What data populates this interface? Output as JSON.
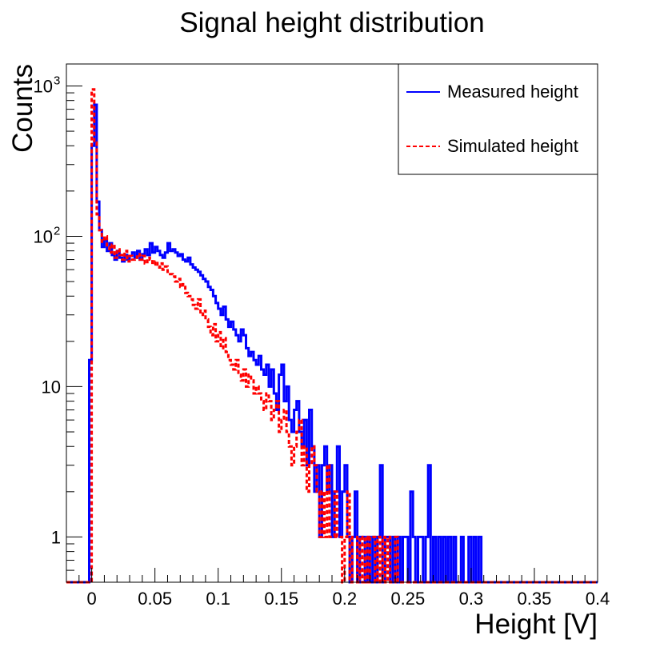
{
  "chart_data": {
    "type": "histogram",
    "title": "Signal height distribution",
    "xlabel": "Height [V]",
    "ylabel": "Counts",
    "xlim": [
      -0.02,
      0.4
    ],
    "ylim": [
      0.5,
      1400
    ],
    "yscale": "log",
    "bin_width": 0.002,
    "x_ticks": [
      {
        "value": 0,
        "label": "0"
      },
      {
        "value": 0.05,
        "label": "0.05"
      },
      {
        "value": 0.1,
        "label": "0.1"
      },
      {
        "value": 0.15,
        "label": "0.15"
      },
      {
        "value": 0.2,
        "label": "0.2"
      },
      {
        "value": 0.25,
        "label": "0.25"
      },
      {
        "value": 0.3,
        "label": "0.3"
      },
      {
        "value": 0.35,
        "label": "0.35"
      },
      {
        "value": 0.4,
        "label": "0.4"
      }
    ],
    "y_ticks": [
      {
        "value": 1,
        "label": "1"
      },
      {
        "value": 10,
        "label": "10"
      },
      {
        "value": 100,
        "label": "10",
        "exp": "2"
      },
      {
        "value": 1000,
        "label": "10",
        "exp": "3"
      }
    ],
    "legend_position": "top-right",
    "series": [
      {
        "name": "Measured height",
        "color": "#0000ff",
        "style": "solid",
        "bin_start": -0.004,
        "values": [
          0,
          15,
          400,
          750,
          170,
          110,
          85,
          95,
          80,
          90,
          75,
          70,
          80,
          72,
          68,
          75,
          70,
          74,
          78,
          72,
          80,
          70,
          76,
          82,
          75,
          90,
          78,
          85,
          80,
          75,
          72,
          78,
          90,
          80,
          82,
          78,
          74,
          76,
          70,
          68,
          72,
          65,
          62,
          60,
          58,
          55,
          52,
          50,
          46,
          44,
          40,
          36,
          33,
          30,
          34,
          28,
          25,
          27,
          24,
          22,
          20,
          24,
          22,
          18,
          16,
          17,
          15,
          14,
          16,
          13,
          12,
          14,
          10,
          13,
          9,
          7,
          12,
          14,
          8,
          10,
          6,
          5,
          7,
          8,
          5,
          4,
          6,
          3,
          7,
          4,
          2,
          3,
          1,
          3,
          4,
          2,
          3,
          1,
          2,
          4,
          1,
          2,
          3,
          1,
          0,
          1,
          2,
          0,
          1,
          1,
          0,
          1,
          0,
          1,
          0,
          1,
          3,
          0,
          1,
          1,
          0,
          1,
          0,
          1,
          0,
          1,
          1,
          0,
          2,
          1,
          0,
          1,
          1,
          0,
          1,
          3,
          0,
          1,
          0,
          1,
          0,
          1,
          0,
          1,
          0,
          1,
          0,
          0,
          1,
          0,
          0,
          1,
          0,
          1,
          0,
          1,
          0,
          0,
          0
        ]
      },
      {
        "name": "Simulated height",
        "color": "#ff0000",
        "style": "dashed",
        "bin_start": -0.002,
        "values": [
          0,
          950,
          420,
          140,
          110,
          92,
          100,
          85,
          78,
          88,
          72,
          82,
          75,
          70,
          80,
          68,
          74,
          70,
          72,
          76,
          70,
          74,
          66,
          72,
          70,
          65,
          68,
          62,
          66,
          60,
          63,
          58,
          56,
          54,
          50,
          52,
          46,
          48,
          42,
          40,
          38,
          35,
          33,
          38,
          30,
          32,
          28,
          25,
          22,
          26,
          20,
          23,
          18,
          21,
          17,
          15,
          14,
          13,
          15,
          12,
          11,
          13,
          10,
          12,
          11,
          9,
          10,
          9,
          8,
          7,
          9,
          8,
          6,
          7,
          8,
          5,
          6,
          7,
          5,
          4,
          3,
          4,
          5,
          6,
          3,
          4,
          2,
          3,
          4,
          3,
          2,
          1,
          2,
          1,
          3,
          1,
          1,
          2,
          1,
          1,
          0,
          1,
          2,
          0,
          1,
          1,
          0,
          1,
          0,
          1,
          0,
          1,
          1,
          0,
          1,
          0,
          1,
          0,
          1,
          0,
          0,
          1,
          0,
          0,
          0,
          0
        ]
      }
    ]
  }
}
